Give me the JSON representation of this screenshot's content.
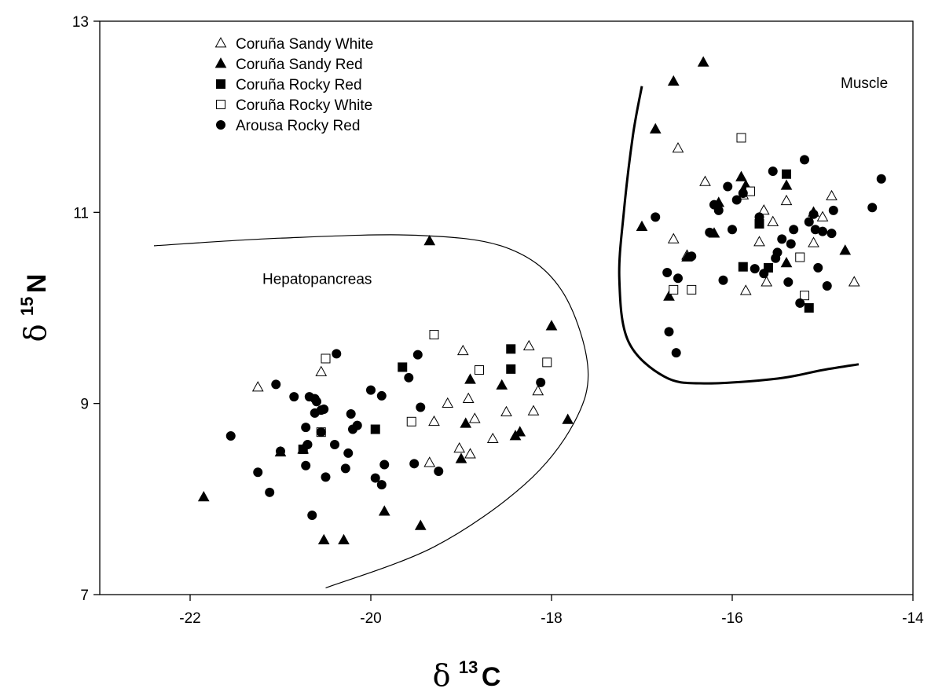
{
  "chart_data": {
    "type": "scatter",
    "xlabel": {
      "symbol": "δ",
      "sup": "13",
      "element": "C"
    },
    "ylabel": {
      "symbol": "δ",
      "sup": "15",
      "element": "N"
    },
    "xlim": [
      -23,
      -14
    ],
    "ylim": [
      7,
      13
    ],
    "xticks": [
      {
        "value": -22,
        "label": "-22"
      },
      {
        "value": -20,
        "label": "-20"
      },
      {
        "value": -18,
        "label": "-18"
      },
      {
        "value": -16,
        "label": "-16"
      },
      {
        "value": -14,
        "label": "-14"
      }
    ],
    "yticks": [
      {
        "value": 7,
        "label": "7"
      },
      {
        "value": 9,
        "label": "9"
      },
      {
        "value": 11,
        "label": "11"
      },
      {
        "value": 13,
        "label": "13"
      }
    ],
    "grid": false,
    "legend_position": "top-left",
    "region_labels": [
      {
        "text": "Hepatopancreas",
        "x": -21.2,
        "y": 10.25
      },
      {
        "text": "Muscle",
        "x": -14.8,
        "y": 12.3
      }
    ],
    "boundaries": [
      {
        "name": "hepatopancreas-boundary",
        "width": "thin",
        "points": [
          [
            -22.4,
            10.65
          ],
          [
            -21.0,
            10.73
          ],
          [
            -19.5,
            10.76
          ],
          [
            -18.5,
            10.63
          ],
          [
            -17.9,
            10.2
          ],
          [
            -17.6,
            9.4
          ],
          [
            -17.75,
            8.8
          ],
          [
            -18.3,
            8.15
          ],
          [
            -19.3,
            7.5
          ],
          [
            -20.5,
            7.07
          ]
        ]
      },
      {
        "name": "muscle-boundary",
        "width": "thick",
        "points": [
          [
            -17.0,
            12.32
          ],
          [
            -17.1,
            11.8
          ],
          [
            -17.2,
            11.0
          ],
          [
            -17.25,
            10.3
          ],
          [
            -17.15,
            9.65
          ],
          [
            -16.75,
            9.28
          ],
          [
            -16.3,
            9.21
          ],
          [
            -15.5,
            9.26
          ],
          [
            -15.0,
            9.35
          ],
          [
            -14.6,
            9.41
          ]
        ]
      }
    ],
    "series": [
      {
        "name": "Coruña Sandy White",
        "marker": "triangle-open",
        "points": [
          [
            -21.25,
            9.17
          ],
          [
            -20.55,
            9.33
          ],
          [
            -20.75,
            8.52
          ],
          [
            -19.35,
            8.38
          ],
          [
            -19.3,
            8.81
          ],
          [
            -19.15,
            9.0
          ],
          [
            -19.02,
            8.53
          ],
          [
            -18.98,
            9.55
          ],
          [
            -18.92,
            9.05
          ],
          [
            -18.9,
            8.47
          ],
          [
            -18.85,
            8.84
          ],
          [
            -18.65,
            8.63
          ],
          [
            -18.5,
            8.91
          ],
          [
            -18.25,
            9.6
          ],
          [
            -18.2,
            8.92
          ],
          [
            -18.15,
            9.13
          ],
          [
            -16.65,
            10.72
          ],
          [
            -16.6,
            11.67
          ],
          [
            -16.3,
            11.32
          ],
          [
            -15.88,
            11.18
          ],
          [
            -15.85,
            10.18
          ],
          [
            -15.7,
            10.69
          ],
          [
            -15.65,
            11.02
          ],
          [
            -15.62,
            10.27
          ],
          [
            -15.55,
            10.9
          ],
          [
            -15.4,
            11.12
          ],
          [
            -15.1,
            10.68
          ],
          [
            -15.0,
            10.95
          ],
          [
            -14.9,
            11.17
          ],
          [
            -14.65,
            10.27
          ],
          [
            -16.5,
            10.55
          ]
        ]
      },
      {
        "name": "Coruña Sandy Red",
        "marker": "triangle-filled",
        "points": [
          [
            -21.85,
            8.02
          ],
          [
            -21.0,
            8.49
          ],
          [
            -20.52,
            7.57
          ],
          [
            -20.3,
            7.57
          ],
          [
            -19.35,
            10.7
          ],
          [
            -19.85,
            7.87
          ],
          [
            -19.45,
            7.72
          ],
          [
            -19.0,
            8.42
          ],
          [
            -18.95,
            8.79
          ],
          [
            -18.9,
            9.25
          ],
          [
            -18.55,
            9.19
          ],
          [
            -18.4,
            8.66
          ],
          [
            -18.35,
            8.7
          ],
          [
            -18.0,
            9.81
          ],
          [
            -17.82,
            8.83
          ],
          [
            -16.85,
            11.87
          ],
          [
            -16.65,
            12.37
          ],
          [
            -16.32,
            12.57
          ],
          [
            -17.0,
            10.85
          ],
          [
            -16.7,
            10.12
          ],
          [
            -16.5,
            10.53
          ],
          [
            -16.2,
            10.78
          ],
          [
            -16.15,
            11.1
          ],
          [
            -15.9,
            11.37
          ],
          [
            -15.85,
            11.28
          ],
          [
            -15.4,
            11.28
          ],
          [
            -15.4,
            10.47
          ],
          [
            -15.1,
            11.0
          ],
          [
            -14.75,
            10.6
          ]
        ]
      },
      {
        "name": "Coruña Rocky Red",
        "marker": "square-filled",
        "points": [
          [
            -20.75,
            8.52
          ],
          [
            -19.95,
            8.73
          ],
          [
            -19.65,
            9.38
          ],
          [
            -18.45,
            9.57
          ],
          [
            -18.45,
            9.36
          ],
          [
            -15.88,
            10.43
          ],
          [
            -15.7,
            10.88
          ],
          [
            -15.6,
            10.42
          ],
          [
            -15.4,
            11.4
          ],
          [
            -15.15,
            10.0
          ]
        ]
      },
      {
        "name": "Coruña Rocky White",
        "marker": "square-open",
        "points": [
          [
            -20.5,
            9.47
          ],
          [
            -20.55,
            8.7
          ],
          [
            -19.3,
            9.72
          ],
          [
            -19.55,
            8.81
          ],
          [
            -18.8,
            9.35
          ],
          [
            -18.05,
            9.43
          ],
          [
            -16.65,
            10.19
          ],
          [
            -16.45,
            10.19
          ],
          [
            -15.9,
            11.78
          ],
          [
            -15.8,
            11.22
          ],
          [
            -15.25,
            10.53
          ],
          [
            -15.2,
            10.13
          ]
        ]
      },
      {
        "name": "Arousa Rocky Red",
        "marker": "circle-filled",
        "points": [
          [
            -21.55,
            8.66
          ],
          [
            -21.25,
            8.28
          ],
          [
            -21.12,
            8.07
          ],
          [
            -21.0,
            8.5
          ],
          [
            -21.05,
            9.2
          ],
          [
            -20.85,
            9.07
          ],
          [
            -20.72,
            8.75
          ],
          [
            -20.72,
            8.35
          ],
          [
            -20.7,
            8.57
          ],
          [
            -20.68,
            9.07
          ],
          [
            -20.62,
            8.9
          ],
          [
            -20.62,
            9.05
          ],
          [
            -20.6,
            9.02
          ],
          [
            -20.55,
            8.7
          ],
          [
            -20.55,
            8.93
          ],
          [
            -20.52,
            8.94
          ],
          [
            -20.5,
            8.23
          ],
          [
            -20.4,
            8.57
          ],
          [
            -20.38,
            9.52
          ],
          [
            -20.28,
            8.32
          ],
          [
            -20.25,
            8.48
          ],
          [
            -20.22,
            8.89
          ],
          [
            -20.2,
            8.73
          ],
          [
            -20.15,
            8.77
          ],
          [
            -20.65,
            7.83
          ],
          [
            -20.0,
            9.14
          ],
          [
            -19.95,
            8.22
          ],
          [
            -19.88,
            8.15
          ],
          [
            -19.88,
            9.08
          ],
          [
            -19.85,
            8.36
          ],
          [
            -19.58,
            9.27
          ],
          [
            -19.52,
            8.37
          ],
          [
            -19.48,
            9.51
          ],
          [
            -19.45,
            8.96
          ],
          [
            -19.25,
            8.29
          ],
          [
            -18.12,
            9.22
          ],
          [
            -16.85,
            10.95
          ],
          [
            -16.72,
            10.37
          ],
          [
            -16.7,
            9.75
          ],
          [
            -16.62,
            9.53
          ],
          [
            -16.6,
            10.31
          ],
          [
            -16.45,
            10.54
          ],
          [
            -16.25,
            10.79
          ],
          [
            -16.2,
            11.08
          ],
          [
            -16.15,
            11.02
          ],
          [
            -16.1,
            10.29
          ],
          [
            -16.05,
            11.27
          ],
          [
            -16.0,
            10.82
          ],
          [
            -15.95,
            11.13
          ],
          [
            -15.88,
            11.2
          ],
          [
            -15.75,
            10.41
          ],
          [
            -15.7,
            10.95
          ],
          [
            -15.65,
            10.36
          ],
          [
            -15.55,
            11.43
          ],
          [
            -15.52,
            10.52
          ],
          [
            -15.5,
            10.58
          ],
          [
            -15.45,
            10.72
          ],
          [
            -15.38,
            10.27
          ],
          [
            -15.35,
            10.67
          ],
          [
            -15.32,
            10.82
          ],
          [
            -15.25,
            10.05
          ],
          [
            -15.2,
            11.55
          ],
          [
            -15.15,
            10.9
          ],
          [
            -15.1,
            10.98
          ],
          [
            -15.05,
            10.42
          ],
          [
            -15.0,
            10.8
          ],
          [
            -14.95,
            10.23
          ],
          [
            -14.9,
            10.78
          ],
          [
            -14.88,
            11.02
          ],
          [
            -14.45,
            11.05
          ],
          [
            -14.35,
            11.35
          ],
          [
            -15.08,
            10.82
          ]
        ]
      }
    ]
  }
}
